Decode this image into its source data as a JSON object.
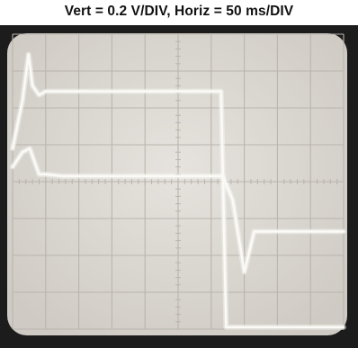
{
  "caption": "Vert = 0.2 V/DIV, Horiz = 50 ms/DIV",
  "chart_data": {
    "type": "line",
    "title": "Vert = 0.2 V/DIV, Horiz = 50 ms/DIV",
    "xlabel": "",
    "ylabel": "",
    "x_divisions": 10,
    "y_divisions": 8,
    "xlim": [
      0,
      10
    ],
    "ylim": [
      -4,
      4
    ],
    "grid": true,
    "colors": {
      "bezel": "#1c1c1c",
      "screen": "#dedbd5",
      "grid": "#b9b5ae",
      "trace": "#fbfaf6"
    },
    "series": [
      {
        "x": [
          0.0,
          0.3,
          0.48,
          0.6,
          0.8,
          1.0,
          2.5,
          5.0,
          6.3,
          6.45,
          7.8,
          10.0
        ],
        "y": [
          0.9,
          2.2,
          3.45,
          2.6,
          2.35,
          2.45,
          2.45,
          2.45,
          2.45,
          -3.95,
          -3.95,
          -3.95
        ]
      },
      {
        "x": [
          0.0,
          0.3,
          0.52,
          0.8,
          1.0,
          1.5,
          3.0,
          4.5,
          6.35,
          6.65,
          7.0,
          7.3,
          7.6,
          8.0,
          8.5,
          10.0
        ],
        "y": [
          0.4,
          0.8,
          0.9,
          0.2,
          0.2,
          0.15,
          0.15,
          0.15,
          0.15,
          -0.5,
          -2.45,
          -1.35,
          -1.35,
          -1.35,
          -1.35,
          -1.35
        ]
      }
    ]
  }
}
